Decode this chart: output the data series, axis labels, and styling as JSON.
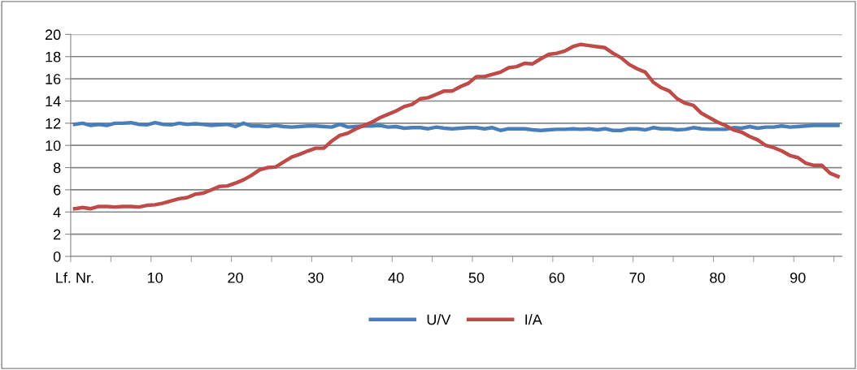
{
  "chart_data": {
    "type": "line",
    "categories": [
      "Lf. Nr.",
      null,
      null,
      null,
      null,
      null,
      null,
      null,
      null,
      null,
      "10",
      null,
      null,
      null,
      null,
      null,
      null,
      null,
      null,
      null,
      "20",
      null,
      null,
      null,
      null,
      null,
      null,
      null,
      null,
      null,
      "30",
      null,
      null,
      null,
      null,
      null,
      null,
      null,
      null,
      null,
      "40",
      null,
      null,
      null,
      null,
      null,
      null,
      null,
      null,
      null,
      "50",
      null,
      null,
      null,
      null,
      null,
      null,
      null,
      null,
      null,
      "60",
      null,
      null,
      null,
      null,
      null,
      null,
      null,
      null,
      null,
      "70",
      null,
      null,
      null,
      null,
      null,
      null,
      null,
      null,
      null,
      "80",
      null,
      null,
      null,
      null,
      null,
      null,
      null,
      null,
      null,
      "90",
      null,
      null,
      null,
      null,
      null
    ],
    "series": [
      {
        "name": "U/V",
        "color": "#4a7ebb",
        "values": [
          11.9,
          12.0,
          11.8,
          11.9,
          11.8,
          12.0,
          12.0,
          12.05,
          11.9,
          11.85,
          12.05,
          11.9,
          11.85,
          12.0,
          11.9,
          11.95,
          11.9,
          11.8,
          11.85,
          11.9,
          11.7,
          12.0,
          11.75,
          11.75,
          11.7,
          11.8,
          11.7,
          11.65,
          11.7,
          11.75,
          11.75,
          11.7,
          11.65,
          11.9,
          11.65,
          11.7,
          11.75,
          11.75,
          11.8,
          11.65,
          11.7,
          11.55,
          11.6,
          11.6,
          11.5,
          11.65,
          11.55,
          11.5,
          11.55,
          11.6,
          11.6,
          11.5,
          11.6,
          11.35,
          11.5,
          11.5,
          11.5,
          11.4,
          11.35,
          11.4,
          11.45,
          11.45,
          11.5,
          11.45,
          11.5,
          11.4,
          11.5,
          11.35,
          11.35,
          11.5,
          11.5,
          11.4,
          11.6,
          11.5,
          11.5,
          11.4,
          11.45,
          11.6,
          11.5,
          11.45,
          11.45,
          11.45,
          11.6,
          11.55,
          11.7,
          11.55,
          11.65,
          11.65,
          11.75,
          11.65,
          11.7,
          11.75,
          11.8,
          11.8,
          11.8,
          11.8
        ]
      },
      {
        "name": "I/A",
        "color": "#be4b48",
        "values": [
          4.3,
          4.4,
          4.3,
          4.5,
          4.5,
          4.45,
          4.5,
          4.5,
          4.45,
          4.6,
          4.65,
          4.8,
          5.0,
          5.2,
          5.3,
          5.6,
          5.7,
          6.0,
          6.3,
          6.35,
          6.6,
          6.9,
          7.3,
          7.8,
          8.0,
          8.05,
          8.5,
          8.95,
          9.2,
          9.5,
          9.75,
          9.75,
          10.4,
          10.9,
          11.1,
          11.5,
          11.8,
          12.1,
          12.5,
          12.8,
          13.1,
          13.5,
          13.7,
          14.2,
          14.3,
          14.6,
          14.9,
          14.9,
          15.3,
          15.6,
          16.2,
          16.2,
          16.4,
          16.6,
          17.0,
          17.1,
          17.4,
          17.35,
          17.8,
          18.2,
          18.3,
          18.5,
          18.9,
          19.1,
          19.0,
          18.9,
          18.8,
          18.3,
          17.9,
          17.3,
          16.9,
          16.6,
          15.7,
          15.2,
          14.9,
          14.2,
          13.8,
          13.6,
          12.9,
          12.5,
          12.1,
          11.8,
          11.4,
          11.2,
          10.8,
          10.5,
          10.0,
          9.8,
          9.5,
          9.1,
          8.9,
          8.4,
          8.2,
          8.2,
          7.5,
          7.2
        ]
      }
    ],
    "ylim": [
      0,
      20
    ],
    "yticks": [
      0,
      2,
      4,
      6,
      8,
      10,
      12,
      14,
      16,
      18,
      20
    ],
    "grid": "y",
    "legend": "bottom",
    "marker": "none",
    "line_style": "solid"
  }
}
